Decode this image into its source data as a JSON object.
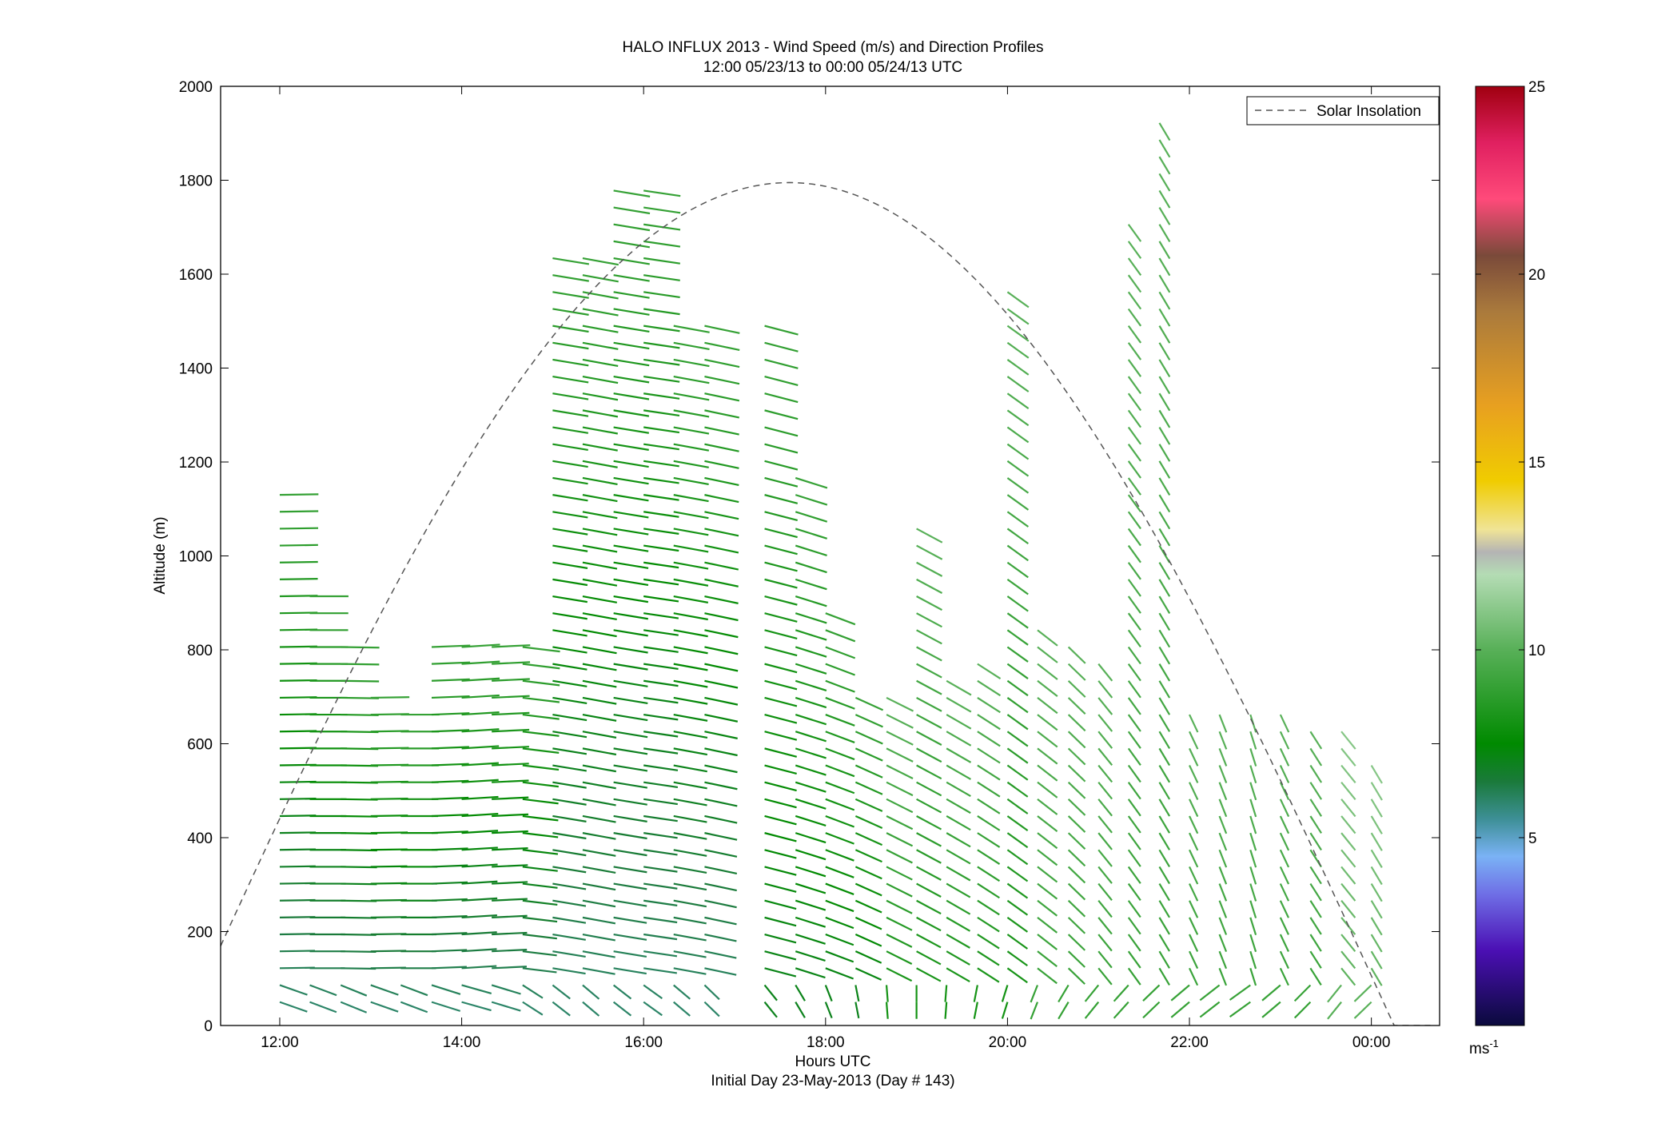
{
  "chart_data": {
    "type": "wind-barb-profile",
    "title": "HALO INFLUX 2013 - Wind Speed (m/s) and Direction Profiles",
    "subtitle": "12:00 05/23/13 to 00:00 05/24/13  UTC",
    "xlabel": "Hours UTC",
    "xlabel2": "Initial Day 23-May-2013 (Day # 143)",
    "ylabel": "Altitude (m)",
    "xlim": [
      11.35,
      24.75
    ],
    "ylim": [
      0,
      2000
    ],
    "xticks": [
      {
        "value": 12,
        "label": "12:00"
      },
      {
        "value": 14,
        "label": "14:00"
      },
      {
        "value": 16,
        "label": "16:00"
      },
      {
        "value": 18,
        "label": "18:00"
      },
      {
        "value": 20,
        "label": "20:00"
      },
      {
        "value": 22,
        "label": "22:00"
      },
      {
        "value": 24,
        "label": "00:00"
      }
    ],
    "yticks": [
      0,
      200,
      400,
      600,
      800,
      1000,
      1200,
      1400,
      1600,
      1800,
      2000
    ],
    "colorbar": {
      "range": [
        0,
        25
      ],
      "ticks": [
        5,
        10,
        15,
        20,
        25
      ],
      "unit": "ms",
      "unit_exp": "-1",
      "stops": [
        {
          "v": 0,
          "c": "#0a0a3c"
        },
        {
          "v": 2,
          "c": "#4b0fb4"
        },
        {
          "v": 3.5,
          "c": "#6f6fe6"
        },
        {
          "v": 4.5,
          "c": "#7ab2f5"
        },
        {
          "v": 5.5,
          "c": "#3d8f96"
        },
        {
          "v": 6.5,
          "c": "#1a7a3a"
        },
        {
          "v": 7.5,
          "c": "#008a00"
        },
        {
          "v": 10,
          "c": "#58b058"
        },
        {
          "v": 12,
          "c": "#b4dcb4"
        },
        {
          "v": 12.6,
          "c": "#b4b4b4"
        },
        {
          "v": 13.2,
          "c": "#f0e496"
        },
        {
          "v": 14.5,
          "c": "#f0cc00"
        },
        {
          "v": 16.5,
          "c": "#e8a020"
        },
        {
          "v": 19,
          "c": "#aa7a3c"
        },
        {
          "v": 20.5,
          "c": "#7a4a3a"
        },
        {
          "v": 22,
          "c": "#ff4a7a"
        },
        {
          "v": 23.5,
          "c": "#e02060"
        },
        {
          "v": 25,
          "c": "#a00010"
        }
      ]
    },
    "legend": {
      "label": "Solar Insolation",
      "position": "top-right",
      "style": "dashed",
      "color": "#555555"
    },
    "solar_insolation": {
      "start": 11.35,
      "end": 24.65,
      "peak_time": 17.6,
      "peak_altitude": 1795
    },
    "series": [
      {
        "x": 12.0,
        "heights": [
          50,
          1140
        ],
        "dy": 36,
        "speed_base": 6,
        "direction": 268,
        "speed_top": 9
      },
      {
        "x": 12.33,
        "heights": [
          50,
          940
        ],
        "dy": 36,
        "speed_base": 6,
        "direction": 270,
        "speed_top": 9
      },
      {
        "x": 12.67,
        "heights": [
          50,
          830
        ],
        "dy": 36,
        "speed_base": 6,
        "direction": 272,
        "speed_top": 9
      },
      {
        "x": 13.0,
        "heights": [
          50,
          730
        ],
        "dy": 36,
        "speed_base": 6,
        "direction": 268,
        "speed_top": 9
      },
      {
        "x": 13.33,
        "heights": [
          50,
          690
        ],
        "dy": 36,
        "speed_base": 6,
        "direction": 270,
        "speed_top": 9
      },
      {
        "x": 13.67,
        "heights": [
          50,
          840
        ],
        "dy": 36,
        "speed_base": 6,
        "direction": 265,
        "speed_top": 9
      },
      {
        "x": 14.0,
        "heights": [
          50,
          840
        ],
        "dy": 36,
        "speed_base": 6,
        "direction": 262,
        "speed_top": 9
      },
      {
        "x": 14.33,
        "heights": [
          50,
          840
        ],
        "dy": 36,
        "speed_base": 6,
        "direction": 264,
        "speed_top": 9
      },
      {
        "x": 14.67,
        "heights": [
          50,
          840
        ],
        "dy": 36,
        "speed_base": 6,
        "direction": 285,
        "speed_top": 9
      },
      {
        "x": 15.0,
        "heights": [
          50,
          1640
        ],
        "dy": 36,
        "speed_base": 6,
        "direction": 290,
        "speed_top": 9
      },
      {
        "x": 15.33,
        "heights": [
          50,
          1640
        ],
        "dy": 36,
        "speed_base": 6,
        "direction": 292,
        "speed_top": 9
      },
      {
        "x": 15.67,
        "heights": [
          50,
          1800
        ],
        "dy": 36,
        "speed_base": 6,
        "direction": 290,
        "speed_top": 9
      },
      {
        "x": 16.0,
        "heights": [
          50,
          1800
        ],
        "dy": 36,
        "speed_base": 6,
        "direction": 288,
        "speed_top": 9
      },
      {
        "x": 16.33,
        "heights": [
          50,
          1500
        ],
        "dy": 36,
        "speed_base": 6,
        "direction": 292,
        "speed_top": 9
      },
      {
        "x": 16.67,
        "heights": [
          50,
          1500
        ],
        "dy": 36,
        "speed_base": 6,
        "direction": 295,
        "speed_top": 9
      },
      {
        "x": 17.33,
        "heights": [
          50,
          1500
        ],
        "dy": 36,
        "speed_base": 7,
        "direction": 300,
        "speed_top": 9
      },
      {
        "x": 17.67,
        "heights": [
          50,
          1200
        ],
        "dy": 36,
        "speed_base": 7,
        "direction": 305,
        "speed_top": 9
      },
      {
        "x": 18.0,
        "heights": [
          50,
          900
        ],
        "dy": 36,
        "speed_base": 7,
        "direction": 310,
        "speed_top": 9
      },
      {
        "x": 18.33,
        "heights": [
          50,
          700
        ],
        "dy": 36,
        "speed_base": 7,
        "direction": 315,
        "speed_top": 9
      },
      {
        "x": 18.67,
        "heights": [
          50,
          700
        ],
        "dy": 36,
        "speed_base": 8,
        "direction": 318,
        "speed_top": 10
      },
      {
        "x": 19.0,
        "heights": [
          50,
          1060
        ],
        "dy": 36,
        "speed_base": 8,
        "direction": 320,
        "speed_top": 10
      },
      {
        "x": 19.33,
        "heights": [
          50,
          740
        ],
        "dy": 36,
        "speed_base": 8,
        "direction": 322,
        "speed_top": 10
      },
      {
        "x": 19.67,
        "heights": [
          50,
          800
        ],
        "dy": 36,
        "speed_base": 8,
        "direction": 325,
        "speed_top": 10
      },
      {
        "x": 20.0,
        "heights": [
          50,
          1570
        ],
        "dy": 36,
        "speed_base": 8,
        "direction": 328,
        "speed_top": 10
      },
      {
        "x": 20.33,
        "heights": [
          50,
          850
        ],
        "dy": 36,
        "speed_base": 9,
        "direction": 330,
        "speed_top": 10
      },
      {
        "x": 20.67,
        "heights": [
          50,
          820
        ],
        "dy": 36,
        "speed_base": 9,
        "direction": 335,
        "speed_top": 10
      },
      {
        "x": 21.0,
        "heights": [
          50,
          800
        ],
        "dy": 36,
        "speed_base": 9,
        "direction": 340,
        "speed_top": 10
      },
      {
        "x": 21.33,
        "heights": [
          50,
          1720
        ],
        "dy": 36,
        "speed_base": 9,
        "direction": 342,
        "speed_top": 10
      },
      {
        "x": 21.67,
        "heights": [
          50,
          1930
        ],
        "dy": 36,
        "speed_base": 9,
        "direction": 345,
        "speed_top": 10
      },
      {
        "x": 22.0,
        "heights": [
          50,
          680
        ],
        "dy": 36,
        "speed_base": 9,
        "direction": 348,
        "speed_top": 10
      },
      {
        "x": 22.33,
        "heights": [
          50,
          680
        ],
        "dy": 36,
        "speed_base": 9,
        "direction": 350,
        "speed_top": 10
      },
      {
        "x": 22.67,
        "heights": [
          50,
          680
        ],
        "dy": 36,
        "speed_base": 9,
        "direction": 352,
        "speed_top": 10
      },
      {
        "x": 23.0,
        "heights": [
          50,
          680
        ],
        "dy": 36,
        "speed_base": 9,
        "direction": 348,
        "speed_top": 10
      },
      {
        "x": 23.33,
        "heights": [
          50,
          640
        ],
        "dy": 36,
        "speed_base": 9,
        "direction": 344,
        "speed_top": 10
      },
      {
        "x": 23.67,
        "heights": [
          50,
          640
        ],
        "dy": 36,
        "speed_base": 10,
        "direction": 340,
        "speed_top": 11
      },
      {
        "x": 24.0,
        "heights": [
          50,
          560
        ],
        "dy": 36,
        "speed_base": 10,
        "direction": 345,
        "speed_top": 11
      }
    ]
  }
}
